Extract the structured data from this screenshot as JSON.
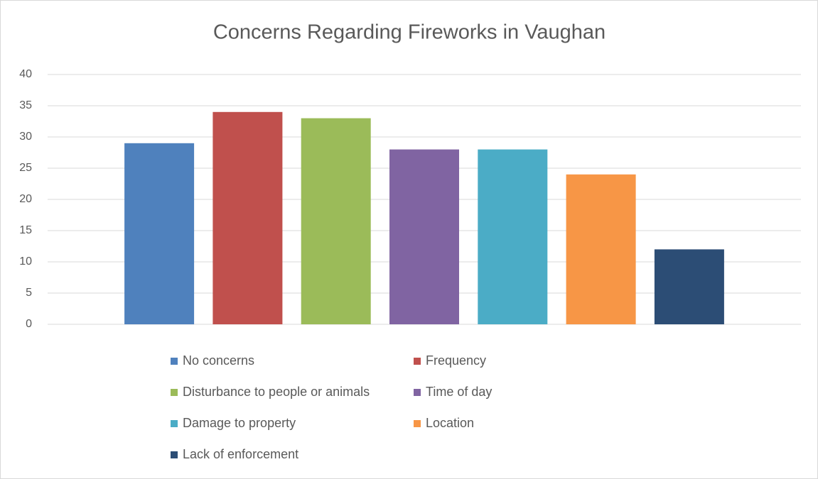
{
  "chart_data": {
    "type": "bar",
    "title": "Concerns Regarding Fireworks in Vaughan",
    "series": [
      {
        "name": "No concerns",
        "color": "#4f81bd",
        "values": [
          29
        ]
      },
      {
        "name": "Frequency",
        "color": "#c0504d",
        "values": [
          34
        ]
      },
      {
        "name": "Disturbance to people or animals",
        "color": "#9bbb59",
        "values": [
          33
        ]
      },
      {
        "name": "Time of day",
        "color": "#8064a2",
        "values": [
          28
        ]
      },
      {
        "name": "Damage to property",
        "color": "#4bacc6",
        "values": [
          28
        ]
      },
      {
        "name": "Location",
        "color": "#f79646",
        "values": [
          24
        ]
      },
      {
        "name": "Lack of enforcement",
        "color": "#2c4d75",
        "values": [
          12
        ]
      }
    ],
    "ylim": [
      0,
      40
    ],
    "yticks": [
      0,
      5,
      10,
      15,
      20,
      25,
      30,
      35,
      40
    ],
    "grid": true,
    "legend": "bottom"
  }
}
